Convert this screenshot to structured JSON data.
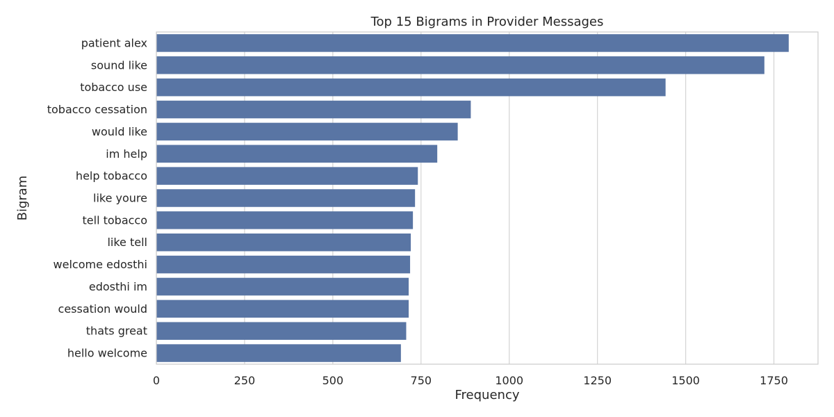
{
  "chart_data": {
    "type": "bar",
    "orientation": "horizontal",
    "title": "Top 15 Bigrams in Provider Messages",
    "xlabel": "Frequency",
    "ylabel": "Bigram",
    "categories": [
      "patient alex",
      "sound like",
      "tobacco use",
      "tobacco cessation",
      "would like",
      "im help",
      "help tobacco",
      "like youre",
      "tell tobacco",
      "like tell",
      "welcome edosthi",
      "edosthi im",
      "cessation would",
      "thats great",
      "hello welcome"
    ],
    "values": [
      1792,
      1723,
      1443,
      891,
      854,
      796,
      741,
      733,
      727,
      721,
      719,
      715,
      715,
      708,
      693
    ],
    "xlim": [
      0,
      1875
    ],
    "xticks": [
      0,
      250,
      500,
      750,
      1000,
      1250,
      1500,
      1750
    ],
    "xtick_labels": [
      "0",
      "250",
      "500",
      "750",
      "1000",
      "1250",
      "1500",
      "1750"
    ],
    "grid": "vertical",
    "legend": "none",
    "colors": {
      "bar": "#5975a4",
      "grid": "#d3d3d3",
      "spine": "#cccccc",
      "text": "#262626"
    }
  }
}
